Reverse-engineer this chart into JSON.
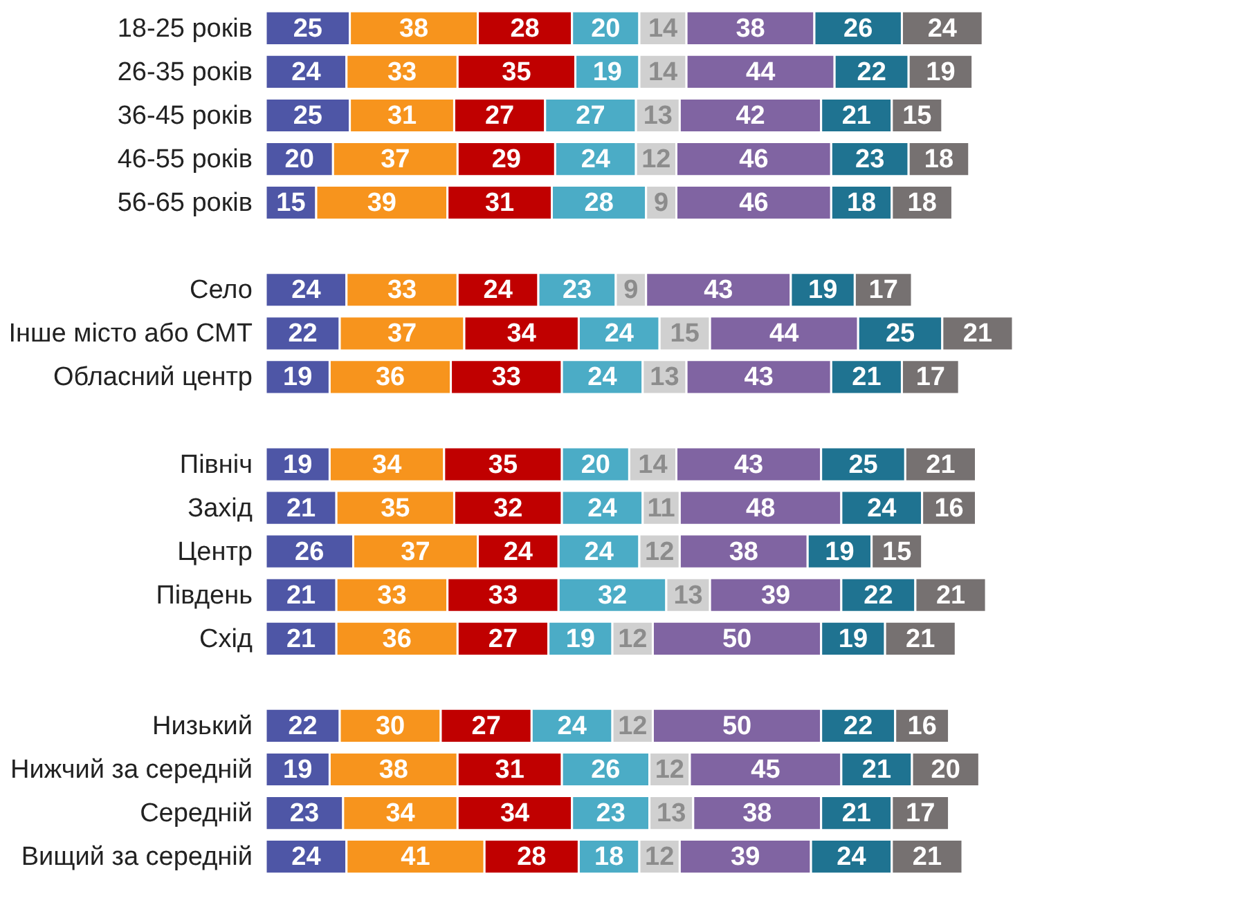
{
  "chart_data": {
    "type": "bar",
    "orientation": "horizontal",
    "stacked": true,
    "data_labels": true,
    "legend": false,
    "grid": false,
    "tick_labels": "y",
    "categories": [
      "18-25 років",
      "26-35 років",
      "36-45 років",
      "46-55 років",
      "56-65 років",
      null,
      "Село",
      "Інше місто або СМТ",
      "Обласний центр",
      null,
      "Північ",
      "Захід",
      "Центр",
      "Південь",
      "Схід",
      null,
      "Низький",
      "Нижчий за середній",
      "Середній",
      "Вищий за середній"
    ],
    "series": [
      {
        "color": "#4e56a6",
        "values": [
          25,
          24,
          25,
          20,
          15,
          null,
          24,
          22,
          19,
          null,
          19,
          21,
          26,
          21,
          21,
          null,
          22,
          19,
          23,
          24
        ]
      },
      {
        "color": "#f7941d",
        "values": [
          38,
          33,
          31,
          37,
          39,
          null,
          33,
          37,
          36,
          null,
          34,
          35,
          37,
          33,
          36,
          null,
          30,
          38,
          34,
          41
        ]
      },
      {
        "color": "#c00000",
        "values": [
          28,
          35,
          27,
          29,
          31,
          null,
          24,
          34,
          33,
          null,
          35,
          32,
          24,
          33,
          27,
          null,
          27,
          31,
          34,
          28
        ]
      },
      {
        "color": "#4bacc6",
        "values": [
          20,
          19,
          27,
          24,
          28,
          null,
          23,
          24,
          24,
          null,
          20,
          24,
          24,
          32,
          19,
          null,
          24,
          26,
          23,
          18
        ]
      },
      {
        "color": "#d0d0d0",
        "values": [
          14,
          14,
          13,
          12,
          9,
          null,
          9,
          15,
          13,
          null,
          14,
          11,
          12,
          13,
          12,
          null,
          12,
          12,
          13,
          12
        ]
      },
      {
        "color": "#8064a2",
        "values": [
          38,
          44,
          42,
          46,
          46,
          null,
          43,
          44,
          43,
          null,
          43,
          48,
          38,
          39,
          50,
          null,
          50,
          45,
          38,
          39
        ]
      },
      {
        "color": "#1f7391",
        "values": [
          26,
          22,
          21,
          23,
          18,
          null,
          19,
          25,
          21,
          null,
          25,
          24,
          19,
          22,
          19,
          null,
          22,
          21,
          21,
          24
        ]
      },
      {
        "color": "#767171",
        "values": [
          24,
          19,
          15,
          18,
          18,
          null,
          17,
          21,
          17,
          null,
          21,
          16,
          15,
          21,
          21,
          null,
          16,
          20,
          17,
          21
        ]
      }
    ]
  }
}
